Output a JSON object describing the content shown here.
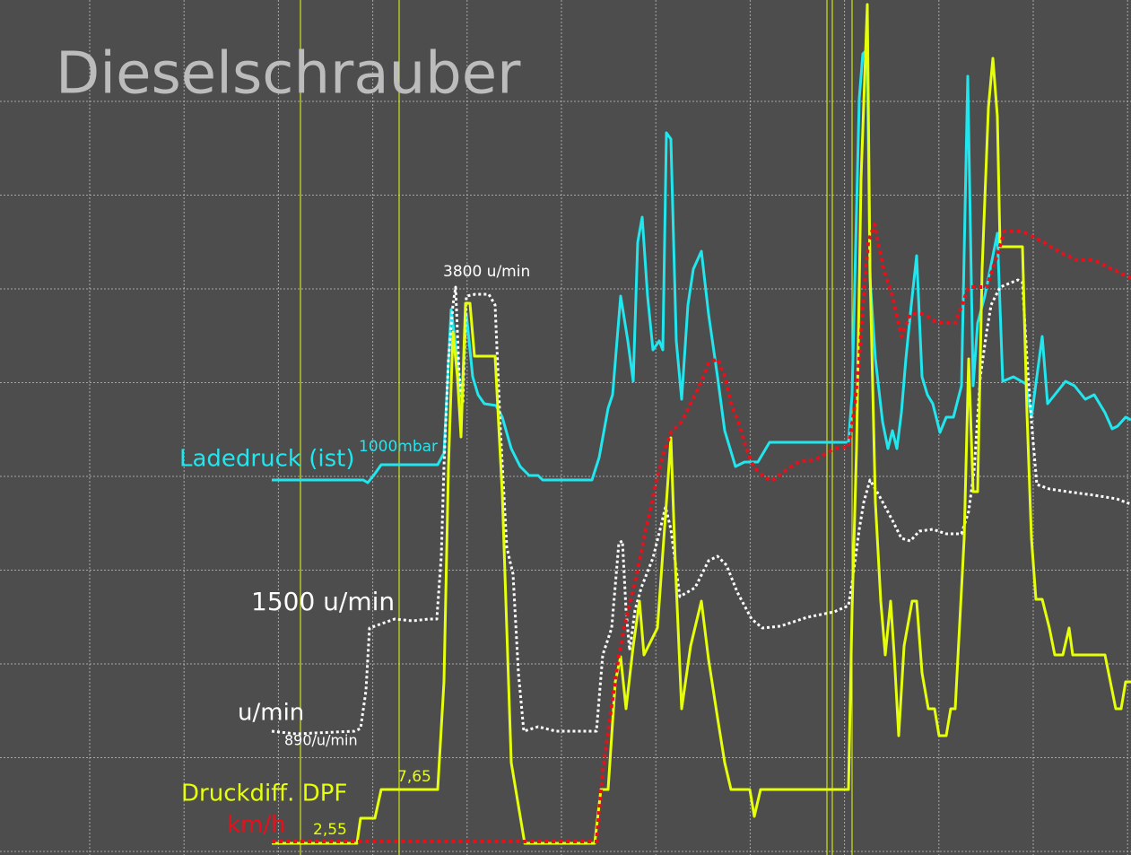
{
  "chart_data": {
    "type": "line",
    "title": "Dieselschrauber",
    "xlim": [
      0,
      126.1
    ],
    "ylim": [
      0,
      95.3
    ],
    "grid": true,
    "series": [
      {
        "name": "Ladedruck (ist)",
        "color": "#22e6ee",
        "style": "solid",
        "x": [
          30.3,
          40.5,
          41.0,
          41.8,
          42.5,
          48.8,
          49.5,
          50.3,
          51.0,
          51.4,
          52.0,
          52.7,
          53.3,
          54.0,
          55.3,
          56.0,
          57.0,
          58.0,
          59.0,
          60.0,
          60.5,
          66.0,
          66.8,
          67.8,
          68.3,
          69.2,
          70.0,
          70.6,
          71.1,
          71.6,
          72.2,
          72.8,
          73.5,
          73.9,
          74.3,
          74.8,
          75.4,
          76.0,
          76.7,
          77.3,
          78.2,
          79.0,
          80.0,
          80.8,
          82.0,
          83.0,
          84.5,
          85.8,
          94.6,
          95.0,
          95.8,
          96.2,
          96.7,
          97.0,
          97.6,
          98.4,
          99.0,
          99.5,
          100.0,
          100.5,
          101.0,
          101.6,
          102.2,
          102.8,
          103.4,
          104.0,
          104.8,
          105.5,
          106.3,
          107.2,
          107.9,
          108.5,
          109.0,
          109.8,
          110.6,
          111.2,
          111.8,
          113.0,
          114.4,
          115.0,
          115.6,
          116.2,
          116.8,
          117.6,
          118.8,
          119.8,
          121.0,
          122.0,
          123.2,
          124.0,
          124.6,
          125.5,
          126.1
        ],
        "values": [
          41.8,
          41.8,
          41.5,
          42.5,
          43.5,
          43.5,
          44.8,
          60.8,
          55.3,
          49.5,
          60.3,
          53.3,
          51.3,
          50.3,
          50.1,
          48.8,
          45.3,
          43.3,
          42.3,
          42.3,
          41.8,
          41.8,
          44.3,
          49.8,
          51.3,
          62.3,
          57.3,
          52.8,
          68.3,
          71.1,
          62.3,
          56.3,
          57.3,
          56.3,
          80.5,
          79.8,
          57.3,
          50.8,
          61.3,
          65.3,
          67.3,
          60.3,
          53.3,
          47.3,
          43.3,
          43.8,
          43.8,
          46.0,
          46.0,
          51.3,
          84.3,
          89.3,
          89.8,
          64.3,
          55.3,
          48.3,
          45.3,
          47.3,
          45.3,
          49.3,
          55.3,
          61.3,
          66.8,
          53.3,
          51.3,
          50.3,
          47.1,
          48.8,
          48.8,
          52.3,
          86.8,
          52.3,
          59.3,
          62.3,
          66.3,
          69.3,
          52.8,
          53.3,
          52.5,
          48.8,
          53.3,
          57.8,
          50.3,
          51.3,
          52.8,
          52.3,
          50.8,
          51.3,
          49.3,
          47.5,
          47.8,
          48.8,
          48.5
        ]
      },
      {
        "name": "u/min",
        "color": "#ffffff",
        "style": "dotted",
        "x": [
          30.3,
          33.0,
          39.5,
          40.2,
          40.8,
          41.2,
          44.0,
          46.0,
          47.8,
          48.7,
          49.2,
          49.5,
          50.0,
          50.5,
          50.8,
          51.2,
          51.6,
          52.0,
          53.0,
          54.5,
          55.2,
          55.8,
          56.5,
          57.2,
          57.8,
          58.4,
          60.0,
          62.0,
          66.5,
          67.2,
          68.2,
          69.0,
          69.4,
          69.8,
          70.2,
          70.8,
          71.5,
          72.8,
          73.6,
          74.2,
          74.8,
          75.2,
          75.8,
          77.5,
          79.0,
          80.0,
          81.0,
          82.2,
          83.8,
          85.0,
          87.0,
          90.0,
          93.0,
          94.6,
          95.0,
          95.8,
          96.3,
          97.0,
          98.0,
          99.5,
          100.5,
          101.5,
          102.5,
          104.0,
          105.5,
          107.2,
          108.0,
          108.6,
          109.3,
          110.0,
          110.5,
          111.5,
          113.5,
          114.0,
          114.5,
          115.0,
          115.6,
          117.0,
          119.0,
          122.0,
          124.5,
          126.1
        ],
        "values": [
          13.8,
          13.5,
          13.8,
          14.1,
          18.3,
          25.3,
          26.3,
          26.1,
          26.3,
          26.3,
          33.3,
          43.3,
          55.3,
          61.3,
          63.3,
          53.3,
          50.3,
          62.3,
          62.5,
          62.5,
          61.3,
          47.3,
          34.3,
          31.3,
          20.3,
          13.8,
          14.3,
          13.8,
          13.8,
          22.3,
          25.3,
          34.8,
          35.0,
          27.3,
          22.8,
          27.3,
          29.8,
          33.1,
          36.3,
          38.8,
          36.3,
          33.3,
          28.8,
          29.8,
          32.8,
          33.3,
          32.3,
          29.3,
          26.3,
          25.3,
          25.5,
          26.5,
          27.1,
          27.8,
          30.3,
          36.3,
          39.3,
          41.8,
          40.1,
          37.3,
          35.3,
          35.0,
          36.1,
          36.3,
          35.8,
          35.8,
          38.3,
          42.8,
          53.3,
          58.3,
          61.3,
          63.3,
          64.1,
          63.8,
          55.3,
          48.3,
          41.3,
          40.8,
          40.5,
          40.1,
          39.7,
          39.1
        ]
      },
      {
        "name": "Druckdiff. DPF",
        "color": "#e6ff0a",
        "style": "solid",
        "x": [
          30.3,
          39.8,
          40.2,
          41.8,
          42.5,
          48.8,
          49.5,
          50.0,
          50.5,
          51.0,
          51.4,
          51.9,
          52.4,
          52.9,
          55.2,
          56.0,
          57.0,
          58.5,
          66.3,
          67.0,
          67.8,
          68.6,
          69.2,
          69.8,
          70.6,
          71.3,
          71.8,
          73.3,
          74.3,
          74.8,
          75.3,
          76.0,
          77.0,
          78.2,
          79.0,
          80.0,
          80.8,
          81.5,
          83.6,
          84.1,
          84.8,
          94.6,
          95.0,
          95.5,
          96.0,
          96.7,
          97.0,
          97.6,
          98.2,
          98.7,
          99.3,
          99.7,
          100.2,
          100.8,
          101.7,
          102.2,
          102.8,
          103.5,
          104.2,
          104.7,
          105.5,
          106.0,
          106.5,
          107.5,
          108.0,
          108.5,
          109.0,
          109.5,
          110.2,
          110.7,
          111.2,
          111.5,
          114.0,
          114.5,
          115.0,
          115.5,
          116.2,
          117.0,
          117.6,
          118.5,
          119.2,
          119.6,
          123.2,
          123.8,
          124.4,
          125.0,
          125.5,
          126.1
        ],
        "values": [
          1.3,
          1.3,
          4.1,
          4.1,
          7.3,
          7.3,
          19.3,
          43.3,
          58.3,
          53.3,
          46.6,
          61.5,
          61.5,
          55.6,
          55.6,
          40.3,
          10.3,
          1.3,
          1.3,
          7.3,
          7.3,
          19.3,
          22.1,
          16.3,
          23.3,
          28.3,
          22.3,
          25.3,
          39.3,
          46.5,
          32.3,
          16.3,
          23.3,
          28.3,
          21.8,
          15.3,
          10.3,
          7.3,
          7.3,
          4.3,
          7.3,
          7.3,
          27.3,
          45.3,
          75.3,
          94.8,
          65.3,
          39.3,
          28.3,
          22.3,
          28.3,
          22.3,
          13.3,
          23.3,
          28.3,
          28.3,
          20.3,
          16.3,
          16.3,
          13.3,
          13.3,
          16.3,
          16.3,
          35.3,
          55.3,
          40.5,
          40.5,
          65.3,
          83.3,
          88.8,
          82.3,
          67.8,
          67.8,
          49.3,
          35.3,
          28.5,
          28.5,
          25.3,
          22.3,
          22.3,
          25.3,
          22.3,
          22.3,
          19.3,
          16.3,
          16.3,
          19.3,
          19.3
        ]
      },
      {
        "name": "km/h",
        "color": "#e8101a",
        "style": "dotted",
        "x": [
          30.3,
          66.5,
          67.2,
          68.0,
          69.0,
          70.0,
          71.0,
          72.0,
          73.0,
          74.0,
          74.8,
          76.0,
          77.0,
          78.2,
          79.0,
          80.0,
          80.8,
          81.5,
          82.5,
          83.2,
          84.0,
          85.0,
          86.0,
          87.5,
          89.0,
          91.0,
          93.0,
          94.6,
          95.2,
          95.8,
          96.3,
          96.8,
          97.5,
          98.5,
          99.5,
          100.5,
          101.5,
          103.0,
          104.5,
          106.5,
          108.0,
          110.0,
          111.0,
          112.0,
          114.0,
          116.0,
          118.0,
          120.0,
          122.0,
          124.0,
          126.1
        ],
        "values": [
          1.5,
          1.5,
          9.3,
          15.3,
          22.3,
          27.3,
          31.3,
          36.3,
          40.8,
          44.8,
          47.1,
          48.3,
          50.3,
          52.8,
          54.8,
          55.3,
          53.3,
          50.3,
          47.8,
          45.3,
          43.3,
          42.3,
          41.7,
          42.8,
          43.8,
          44.1,
          45.3,
          45.5,
          49.3,
          55.3,
          62.3,
          68.3,
          70.3,
          65.3,
          62.3,
          57.8,
          60.3,
          60.3,
          59.3,
          59.3,
          63.3,
          63.3,
          66.3,
          69.5,
          69.5,
          68.5,
          67.3,
          66.3,
          66.3,
          65.3,
          64.3
        ]
      }
    ],
    "annotations": [
      {
        "text": "3800 u/min",
        "color": "#ffffff"
      },
      {
        "text": "1000mbar",
        "color": "#22e6ee"
      },
      {
        "text": "1500 u/min",
        "color": "#ffffff"
      },
      {
        "text": "890/u/min",
        "color": "#ffffff"
      },
      {
        "text": "7,65",
        "color": "#e6ff0a"
      },
      {
        "text": "2,55",
        "color": "#e6ff0a"
      }
    ]
  }
}
